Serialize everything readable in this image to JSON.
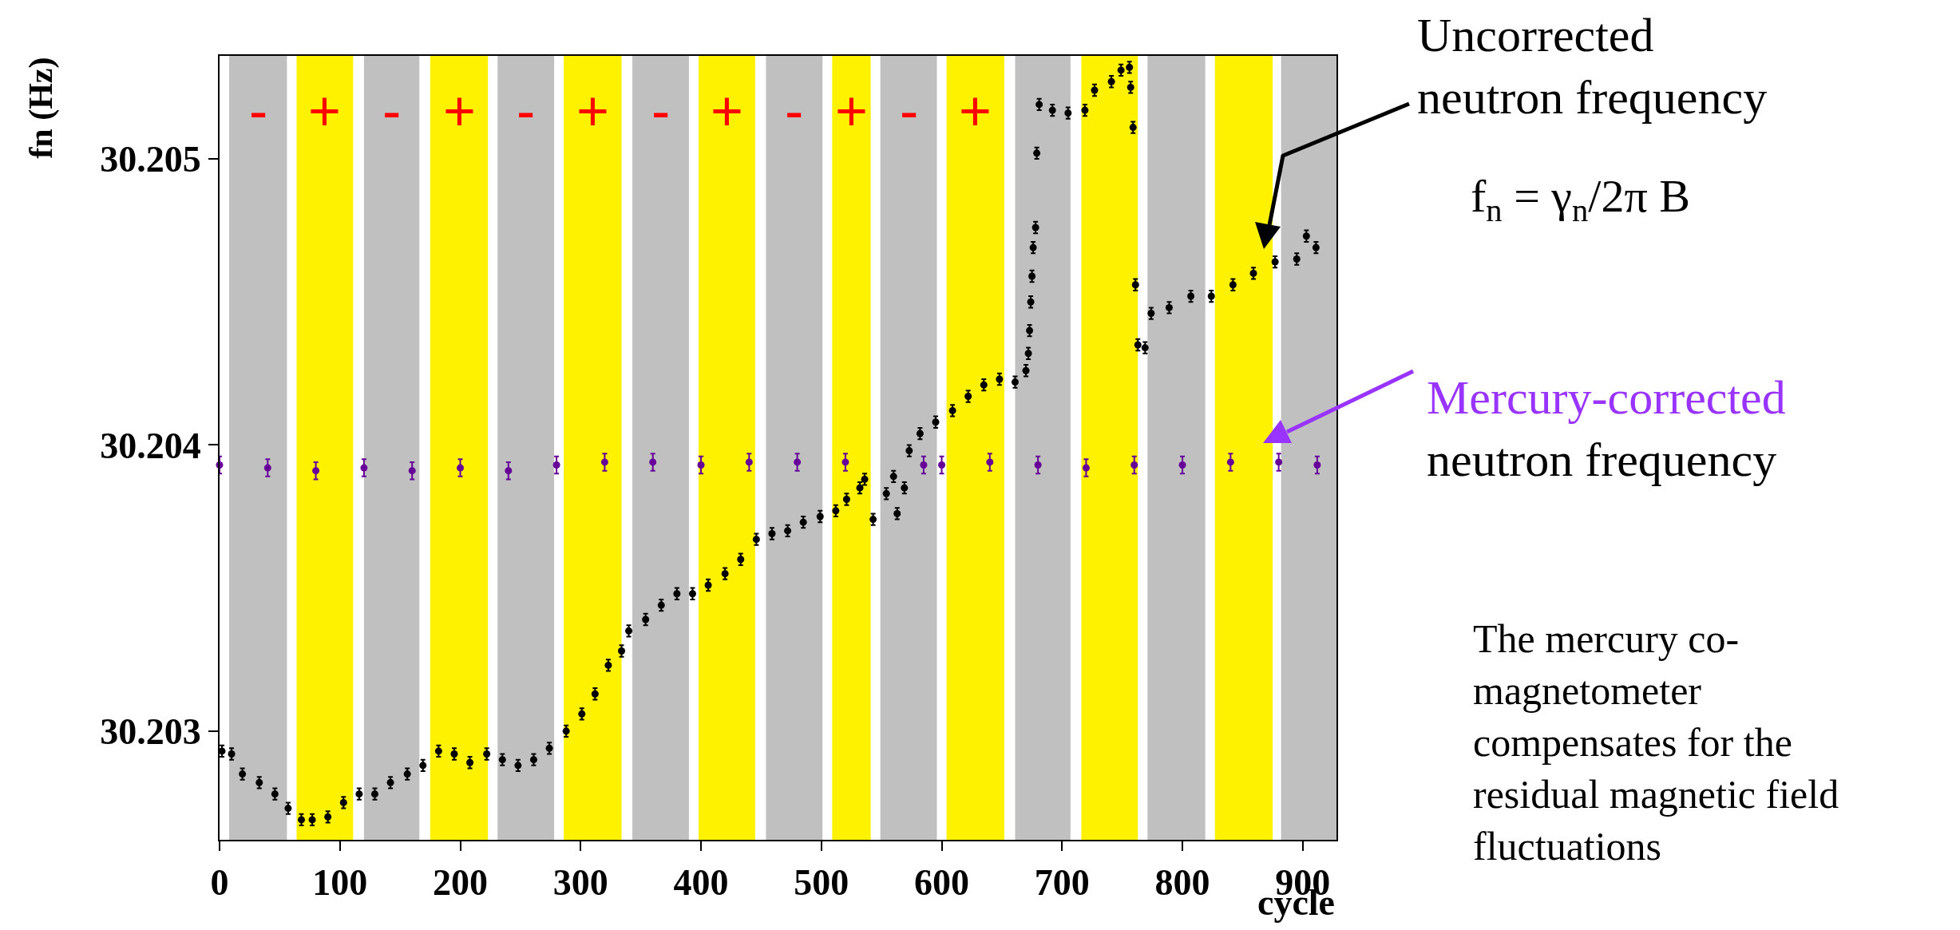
{
  "chart_data": {
    "type": "scatter",
    "xlabel": "cycle",
    "ylabel": "fn (Hz)",
    "marker": "circle",
    "xlim": [
      0,
      928
    ],
    "xticks": [
      0,
      100,
      200,
      300,
      400,
      500,
      600,
      700,
      800,
      900
    ],
    "ylim": [
      30.20262,
      30.20536
    ],
    "yticks": [
      30.203,
      30.204,
      30.205
    ],
    "series": [
      {
        "color": "#000000",
        "x": [
          2,
          10,
          19,
          33,
          46,
          57,
          68,
          77,
          90,
          103,
          116,
          129,
          142,
          156,
          169,
          182,
          195,
          208,
          222,
          235,
          248,
          261,
          274,
          288,
          301,
          312,
          323,
          334,
          340,
          354,
          367,
          380,
          393,
          406,
          420,
          433,
          446,
          459,
          472,
          485,
          499,
          512,
          521,
          532,
          536,
          543,
          554,
          560,
          563,
          569,
          573,
          582,
          595,
          609,
          622,
          635,
          648,
          661,
          670,
          672,
          673,
          674,
          675,
          676,
          678,
          679,
          681,
          692,
          705,
          719,
          727,
          741,
          749,
          756,
          757,
          759,
          761,
          763,
          769,
          774,
          789,
          807,
          824,
          842,
          859,
          877,
          895,
          903,
          911
        ],
        "values": [
          30.20293,
          30.20292,
          30.20285,
          30.20282,
          30.20278,
          30.20273,
          30.20269,
          30.20269,
          30.2027,
          30.20275,
          30.20278,
          30.20278,
          30.20282,
          30.20285,
          30.20288,
          30.20293,
          30.20292,
          30.20289,
          30.20292,
          30.2029,
          30.20288,
          30.2029,
          30.20294,
          30.203,
          30.20306,
          30.20313,
          30.20323,
          30.20328,
          30.20335,
          30.20339,
          30.20344,
          30.20348,
          30.20348,
          30.20351,
          30.20355,
          30.2036,
          30.20367,
          30.20369,
          30.2037,
          30.20373,
          30.20375,
          30.20377,
          30.20381,
          30.20385,
          30.20388,
          30.20374,
          30.20383,
          30.20389,
          30.20376,
          30.20385,
          30.20398,
          30.20404,
          30.20408,
          30.20412,
          30.20417,
          30.20421,
          30.20423,
          30.20422,
          30.20426,
          30.20432,
          30.2044,
          30.2045,
          30.20459,
          30.20469,
          30.20476,
          30.20502,
          30.20519,
          30.20517,
          30.20516,
          30.20517,
          30.20524,
          30.20527,
          30.20531,
          30.20532,
          30.20525,
          30.20511,
          30.20456,
          30.20435,
          30.20434,
          30.20446,
          30.20448,
          30.20452,
          30.20452,
          30.20456,
          30.2046,
          30.20464,
          30.20465,
          30.20473,
          30.20469
        ],
        "errors": [
          2e-05,
          2e-05,
          2e-05,
          2e-05,
          2e-05,
          2e-05,
          2e-05,
          2e-05,
          2e-05,
          2e-05,
          2e-05,
          2e-05,
          2e-05,
          2e-05,
          2e-05,
          2e-05,
          2e-05,
          2e-05,
          2e-05,
          2e-05,
          2e-05,
          2e-05,
          2e-05,
          2e-05,
          2e-05,
          2e-05,
          2e-05,
          2e-05,
          2e-05,
          2e-05,
          2e-05,
          2e-05,
          2e-05,
          2e-05,
          2e-05,
          2e-05,
          2e-05,
          2e-05,
          2e-05,
          2e-05,
          2e-05,
          2e-05,
          2e-05,
          2e-05,
          2e-05,
          2e-05,
          2e-05,
          2e-05,
          2e-05,
          2e-05,
          2e-05,
          2e-05,
          2e-05,
          2e-05,
          2e-05,
          2e-05,
          2e-05,
          2e-05,
          2e-05,
          2e-05,
          2e-05,
          2e-05,
          2e-05,
          2e-05,
          2e-05,
          2e-05,
          2e-05,
          2e-05,
          2e-05,
          2e-05,
          2e-05,
          2e-05,
          2e-05,
          2e-05,
          2e-05,
          2e-05,
          2e-05,
          2e-05,
          2e-05,
          2e-05,
          2e-05,
          2e-05,
          2e-05,
          2e-05,
          2e-05,
          2e-05,
          2e-05,
          2e-05,
          2e-05
        ]
      },
      {
        "color": "#660099",
        "x": [
          0,
          40,
          80,
          120,
          160,
          200,
          240,
          280,
          320,
          360,
          400,
          440,
          480,
          520,
          585,
          600,
          640,
          680,
          720,
          760,
          800,
          840,
          880,
          912
        ],
        "values": [
          30.20393,
          30.20392,
          30.20391,
          30.20392,
          30.20391,
          30.20392,
          30.20391,
          30.20393,
          30.20394,
          30.20394,
          30.20393,
          30.20394,
          30.20394,
          30.20394,
          30.20393,
          30.20393,
          30.20394,
          30.20393,
          30.20392,
          30.20393,
          30.20393,
          30.20394,
          30.20394,
          30.20393
        ],
        "errors": [
          3e-05,
          3e-05,
          3e-05,
          3e-05,
          3e-05,
          3e-05,
          3e-05,
          3e-05,
          3e-05,
          3e-05,
          3e-05,
          3e-05,
          3e-05,
          3e-05,
          3e-05,
          3e-05,
          3e-05,
          3e-05,
          3e-05,
          3e-05,
          3e-05,
          3e-05,
          3e-05,
          3e-05
        ]
      }
    ],
    "bands": [
      {
        "axis": "x",
        "from": 8,
        "to": 56,
        "label": "-",
        "color": "#c0c0c0"
      },
      {
        "axis": "x",
        "from": 64,
        "to": 111,
        "label": "+",
        "color": "#fff200"
      },
      {
        "axis": "x",
        "from": 120,
        "to": 166,
        "label": "-",
        "color": "#c0c0c0"
      },
      {
        "axis": "x",
        "from": 175,
        "to": 223,
        "label": "+",
        "color": "#fff200"
      },
      {
        "axis": "x",
        "from": 231,
        "to": 278,
        "label": "-",
        "color": "#c0c0c0"
      },
      {
        "axis": "x",
        "from": 286,
        "to": 334,
        "label": "+",
        "color": "#fff200"
      },
      {
        "axis": "x",
        "from": 343,
        "to": 390,
        "label": "-",
        "color": "#c0c0c0"
      },
      {
        "axis": "x",
        "from": 398,
        "to": 445,
        "label": "+",
        "color": "#fff200"
      },
      {
        "axis": "x",
        "from": 454,
        "to": 501,
        "label": "-",
        "color": "#c0c0c0"
      },
      {
        "axis": "x",
        "from": 509,
        "to": 541,
        "label": "+",
        "color": "#fff200"
      },
      {
        "axis": "x",
        "from": 549,
        "to": 596,
        "label": "-",
        "color": "#c0c0c0"
      },
      {
        "axis": "x",
        "from": 604,
        "to": 652,
        "label": "+",
        "color": "#fff200"
      },
      {
        "axis": "x",
        "from": 661,
        "to": 707,
        "color": "#c0c0c0"
      },
      {
        "axis": "x",
        "from": 716,
        "to": 763,
        "color": "#fff200"
      },
      {
        "axis": "x",
        "from": 771,
        "to": 819,
        "color": "#c0c0c0"
      },
      {
        "axis": "x",
        "from": 827,
        "to": 875,
        "color": "#fff200"
      },
      {
        "axis": "x",
        "from": 882,
        "to": 928,
        "color": "#c0c0c0"
      }
    ],
    "annotations": [
      "Uncorrected\nneutron frequency",
      "f$_{n}$ = γ$_{n}$/2π B",
      "Mercury-corrected\nneutron frequency",
      "The mercury co-\nmagnetometer\ncompensates for the\nresidual magnetic field\nfluctuations"
    ]
  }
}
